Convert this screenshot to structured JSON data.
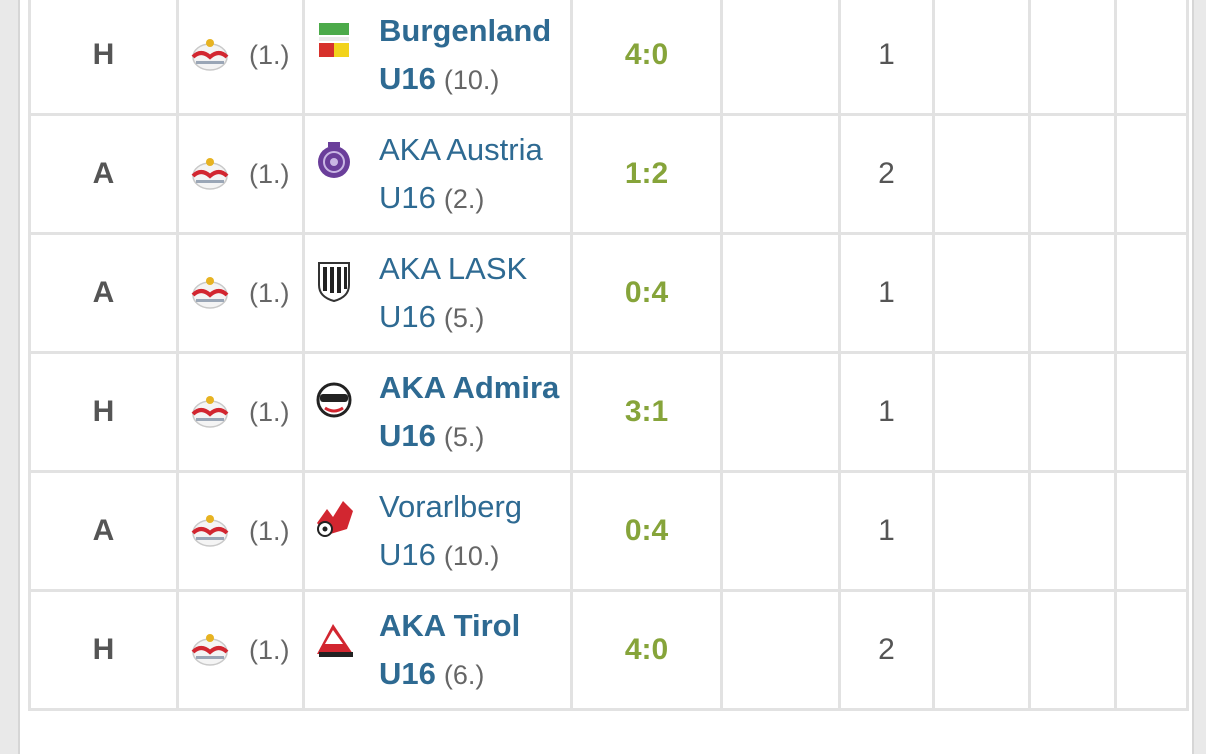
{
  "rows": [
    {
      "ha": "H",
      "home_rank": "(1.)",
      "away_line1": "Burgenland",
      "away_line2": "U16",
      "away_rank": "(10.)",
      "away_logo": "burgenland-logo-icon",
      "bold": true,
      "score": "4:0",
      "col": "1"
    },
    {
      "ha": "A",
      "home_rank": "(1.)",
      "away_line1": "AKA Austria",
      "away_line2": "U16",
      "away_rank": "(2.)",
      "away_logo": "austria-logo-icon",
      "bold": false,
      "score": "1:2",
      "col": "2"
    },
    {
      "ha": "A",
      "home_rank": "(1.)",
      "away_line1": "AKA LASK",
      "away_line2": "U16",
      "away_rank": "(5.)",
      "away_logo": "lask-logo-icon",
      "bold": false,
      "score": "0:4",
      "col": "1"
    },
    {
      "ha": "H",
      "home_rank": "(1.)",
      "away_line1": "AKA Admira",
      "away_line2": "U16",
      "away_rank": "(5.)",
      "away_logo": "admira-logo-icon",
      "bold": true,
      "score": "3:1",
      "col": "1"
    },
    {
      "ha": "A",
      "home_rank": "(1.)",
      "away_line1": "Vorarlberg",
      "away_line2": "U16",
      "away_rank": "(10.)",
      "away_logo": "vorarlberg-logo-icon",
      "bold": false,
      "score": "0:4",
      "col": "1"
    },
    {
      "ha": "H",
      "home_rank": "(1.)",
      "away_line1": "AKA Tirol",
      "away_line2": "U16",
      "away_rank": "(6.)",
      "away_logo": "tirol-logo-icon",
      "bold": true,
      "score": "4:0",
      "col": "2"
    }
  ],
  "home_logo": "red-bull-salzburg-logo-icon",
  "colors": {
    "team_link": "#2e6a92",
    "score": "#86a43a",
    "text": "#555555",
    "grid": "#e2e2e2"
  }
}
